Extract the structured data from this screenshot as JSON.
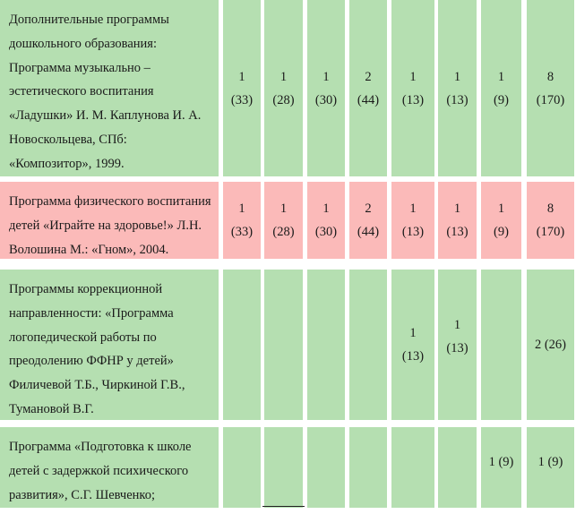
{
  "rows": [
    {
      "name": "Дополнительные программы дошкольного образования",
      "text_lines": [
        "Дополнительные программы",
        "дошкольного образования:",
        "Программа музыкально –",
        "эстетического воспитания",
        "«Ладушки» И. М. Каплунова И. А.",
        "Новоскольцева, СПб:",
        "«Композитор», 1999."
      ],
      "values": [
        [
          "1",
          "(33)"
        ],
        [
          "1",
          "(28)"
        ],
        [
          "1",
          "(30)"
        ],
        [
          "2",
          "(44)"
        ],
        [
          "1",
          "(13)"
        ],
        [
          "1",
          "(13)"
        ],
        [
          "1",
          "(9)"
        ],
        [
          "8",
          "(170)"
        ]
      ]
    },
    {
      "name": "Программа физического воспитания",
      "text_lines": [
        "Программа физического воспитания",
        "детей «Играйте на здоровье!» Л.Н.",
        "Волошина М.: «Гном», 2004."
      ],
      "values": [
        [
          "1",
          "(33)"
        ],
        [
          "1",
          "(28)"
        ],
        [
          "1",
          "(30)"
        ],
        [
          "2",
          "(44)"
        ],
        [
          "1",
          "(13)"
        ],
        [
          "1",
          "(13)"
        ],
        [
          "1",
          "(9)"
        ],
        [
          "8",
          "(170)"
        ]
      ]
    },
    {
      "name": "Программы коррекционной направленности",
      "text_lines": [
        "Программы коррекционной",
        "направленности: «Программа",
        "логопедической работы по",
        "преодолению ФФНР у детей»",
        "Филичевой Т.Б., Чиркиной Г.В.,",
        "Тумановой В.Г."
      ],
      "values": [
        [],
        [],
        [],
        [],
        [
          "1",
          "(13)"
        ],
        [
          "1",
          "(13)"
        ],
        [],
        [
          "2 (26)"
        ]
      ]
    },
    {
      "name": "Программа Подготовка к школе",
      "text_lines": [
        "Программа «Подготовка к школе",
        "детей с задержкой психического",
        "развития», С.Г. Шевченко;"
      ],
      "values": [
        [],
        [],
        [],
        [],
        [],
        [],
        [
          "1 (9)"
        ],
        [
          "1 (9)"
        ]
      ]
    }
  ]
}
